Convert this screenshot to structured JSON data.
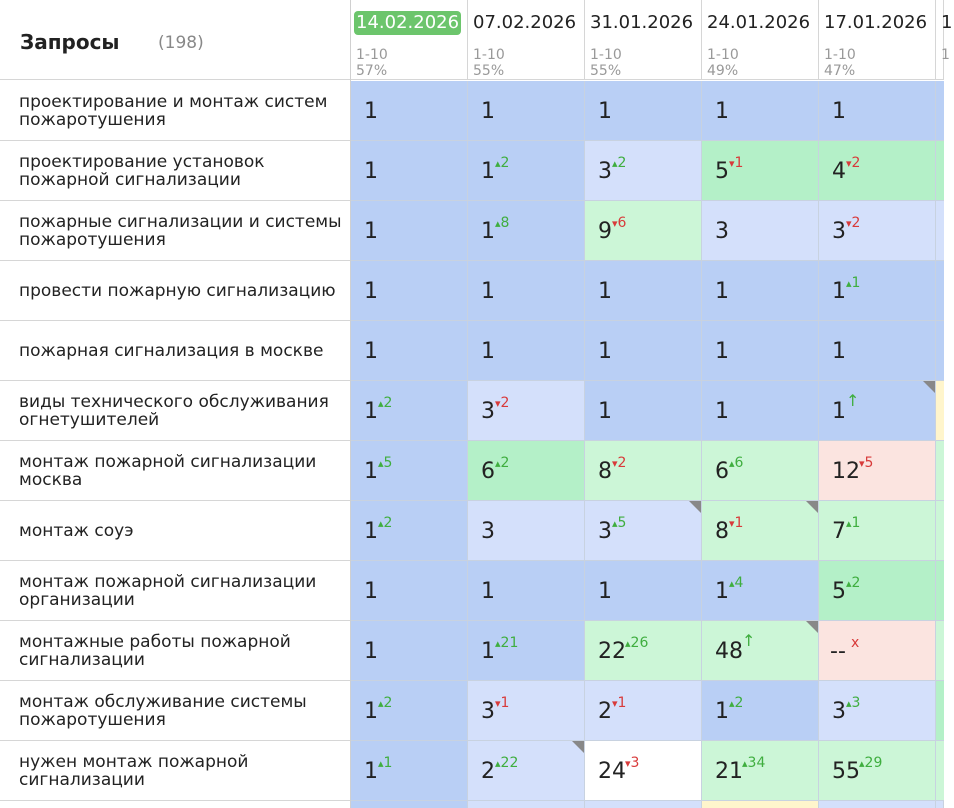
{
  "header": {
    "title": "Запросы",
    "count": "(198)"
  },
  "dates": [
    {
      "date": "14.02.2026",
      "range": "1-10",
      "pct": "57%",
      "active": true
    },
    {
      "date": "07.02.2026",
      "range": "1-10",
      "pct": "55%"
    },
    {
      "date": "31.01.2026",
      "range": "1-10",
      "pct": "55%"
    },
    {
      "date": "24.01.2026",
      "range": "1-10",
      "pct": "49%"
    },
    {
      "date": "17.01.2026",
      "range": "1-10",
      "pct": "47%"
    },
    {
      "date": "1",
      "range": "1",
      "pct": ""
    }
  ],
  "colors": {
    "top1": "#b9cff5",
    "top3": "#d4e0fb",
    "top5": "#b4f0c8",
    "top10": "#ccf6d7",
    "top20": "#fbe4e0",
    "none": "#ffffff",
    "partial_yellow": "#fff5cc",
    "partial_green": "#a9eab7"
  },
  "rows": [
    {
      "query": "проектирование и монтаж систем пожаротушения",
      "cells": [
        {
          "pos": "1",
          "bg": "top1"
        },
        {
          "pos": "1",
          "bg": "top1"
        },
        {
          "pos": "1",
          "bg": "top1"
        },
        {
          "pos": "1",
          "bg": "top1"
        },
        {
          "pos": "1",
          "bg": "top1"
        }
      ],
      "edge": "top1"
    },
    {
      "query": "проектирование установок пожарной сигнализации",
      "cells": [
        {
          "pos": "1",
          "bg": "top1"
        },
        {
          "pos": "1",
          "ch": "2",
          "dir": "up",
          "bg": "top1"
        },
        {
          "pos": "3",
          "ch": "2",
          "dir": "up",
          "bg": "top3"
        },
        {
          "pos": "5",
          "ch": "1",
          "dir": "down",
          "bg": "top5"
        },
        {
          "pos": "4",
          "ch": "2",
          "dir": "down",
          "bg": "top5"
        }
      ],
      "edge": "top5"
    },
    {
      "query": "пожарные сигнализации и системы пожаротушения",
      "cells": [
        {
          "pos": "1",
          "bg": "top1"
        },
        {
          "pos": "1",
          "ch": "8",
          "dir": "up",
          "bg": "top1"
        },
        {
          "pos": "9",
          "ch": "6",
          "dir": "down",
          "bg": "top10"
        },
        {
          "pos": "3",
          "bg": "top3"
        },
        {
          "pos": "3",
          "ch": "2",
          "dir": "down",
          "bg": "top3"
        }
      ],
      "edge": "top3"
    },
    {
      "query": "провести пожарную сигнализацию",
      "cells": [
        {
          "pos": "1",
          "bg": "top1"
        },
        {
          "pos": "1",
          "bg": "top1"
        },
        {
          "pos": "1",
          "bg": "top1"
        },
        {
          "pos": "1",
          "bg": "top1"
        },
        {
          "pos": "1",
          "ch": "1",
          "dir": "up",
          "bg": "top1"
        }
      ],
      "edge": "top1"
    },
    {
      "query": "пожарная сигнализация в москве",
      "cells": [
        {
          "pos": "1",
          "bg": "top1"
        },
        {
          "pos": "1",
          "bg": "top1"
        },
        {
          "pos": "1",
          "bg": "top1"
        },
        {
          "pos": "1",
          "bg": "top1"
        },
        {
          "pos": "1",
          "bg": "top1"
        }
      ],
      "edge": "top1"
    },
    {
      "query": "виды технического обслуживания огнетушителей",
      "cells": [
        {
          "pos": "1",
          "ch": "2",
          "dir": "up",
          "bg": "top1"
        },
        {
          "pos": "3",
          "ch": "2",
          "dir": "down",
          "bg": "top3"
        },
        {
          "pos": "1",
          "bg": "top1"
        },
        {
          "pos": "1",
          "bg": "top1"
        },
        {
          "pos": "1",
          "ch": "↑",
          "dir": "new",
          "bg": "top1",
          "tri": true
        }
      ],
      "edge": "partial_yellow"
    },
    {
      "query": "монтаж пожарной сигнализации москва",
      "cells": [
        {
          "pos": "1",
          "ch": "5",
          "dir": "up",
          "bg": "top1"
        },
        {
          "pos": "6",
          "ch": "2",
          "dir": "up",
          "bg": "top5"
        },
        {
          "pos": "8",
          "ch": "2",
          "dir": "down",
          "bg": "top10"
        },
        {
          "pos": "6",
          "ch": "6",
          "dir": "up",
          "bg": "top10"
        },
        {
          "pos": "12",
          "ch": "5",
          "dir": "down",
          "bg": "top20"
        }
      ],
      "edge": "top10"
    },
    {
      "query": "монтаж соуэ",
      "cells": [
        {
          "pos": "1",
          "ch": "2",
          "dir": "up",
          "bg": "top1"
        },
        {
          "pos": "3",
          "bg": "top3"
        },
        {
          "pos": "3",
          "ch": "5",
          "dir": "up",
          "bg": "top3",
          "tri": true
        },
        {
          "pos": "8",
          "ch": "1",
          "dir": "down",
          "bg": "top10",
          "tri": true
        },
        {
          "pos": "7",
          "ch": "1",
          "dir": "up",
          "bg": "top10"
        }
      ],
      "edge": "top10"
    },
    {
      "query": "монтаж пожарной сигнализации организации",
      "cells": [
        {
          "pos": "1",
          "bg": "top1"
        },
        {
          "pos": "1",
          "bg": "top1"
        },
        {
          "pos": "1",
          "bg": "top1"
        },
        {
          "pos": "1",
          "ch": "4",
          "dir": "up",
          "bg": "top1"
        },
        {
          "pos": "5",
          "ch": "2",
          "dir": "up",
          "bg": "top5"
        }
      ],
      "edge": "top5"
    },
    {
      "query": "монтажные работы пожарной сигнализации",
      "cells": [
        {
          "pos": "1",
          "bg": "top1"
        },
        {
          "pos": "1",
          "ch": "21",
          "dir": "up",
          "bg": "top1"
        },
        {
          "pos": "22",
          "ch": "26",
          "dir": "up",
          "bg": "top10"
        },
        {
          "pos": "48",
          "ch": "↑",
          "dir": "new",
          "bg": "top10",
          "tri": true
        },
        {
          "pos": "--",
          "ch": "x",
          "dir": "lost",
          "bg": "top20"
        }
      ],
      "edge": "top10"
    },
    {
      "query": "монтаж обслуживание системы пожаротушения",
      "cells": [
        {
          "pos": "1",
          "ch": "2",
          "dir": "up",
          "bg": "top1"
        },
        {
          "pos": "3",
          "ch": "1",
          "dir": "down",
          "bg": "top3"
        },
        {
          "pos": "2",
          "ch": "1",
          "dir": "down",
          "bg": "top3"
        },
        {
          "pos": "1",
          "ch": "2",
          "dir": "up",
          "bg": "top1"
        },
        {
          "pos": "3",
          "ch": "3",
          "dir": "up",
          "bg": "top3"
        }
      ],
      "edge": "top5"
    },
    {
      "query": "нужен монтаж пожарной сигнализации",
      "cells": [
        {
          "pos": "1",
          "ch": "1",
          "dir": "up",
          "bg": "top1"
        },
        {
          "pos": "2",
          "ch": "22",
          "dir": "up",
          "bg": "top3",
          "tri": true
        },
        {
          "pos": "24",
          "ch": "3",
          "dir": "down",
          "bg": "none"
        },
        {
          "pos": "21",
          "ch": "34",
          "dir": "up",
          "bg": "top10"
        },
        {
          "pos": "55",
          "ch": "29",
          "dir": "up",
          "bg": "top10"
        }
      ],
      "edge": "top10"
    }
  ]
}
